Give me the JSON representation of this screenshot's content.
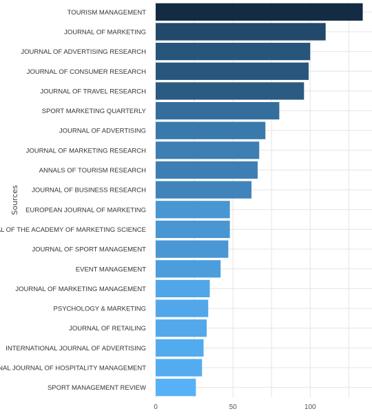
{
  "chart_data": {
    "type": "bar",
    "orientation": "horizontal",
    "title": "",
    "xlabel": "",
    "ylabel": "Sources",
    "xlim": [
      0,
      140
    ],
    "xticks": [
      0,
      50,
      100
    ],
    "grid": true,
    "categories": [
      "TOURISM MANAGEMENT",
      "JOURNAL OF MARKETING",
      "JOURNAL OF ADVERTISING RESEARCH",
      "JOURNAL OF CONSUMER RESEARCH",
      "JOURNAL OF TRAVEL RESEARCH",
      "SPORT MARKETING QUARTERLY",
      "JOURNAL OF ADVERTISING",
      "JOURNAL OF MARKETING RESEARCH",
      "ANNALS OF TOURISM RESEARCH",
      "JOURNAL OF BUSINESS RESEARCH",
      "EUROPEAN JOURNAL OF MARKETING",
      "JOURNAL OF THE ACADEMY OF MARKETING SCIENCE",
      "JOURNAL OF SPORT MANAGEMENT",
      "EVENT MANAGEMENT",
      "JOURNAL OF MARKETING MANAGEMENT",
      "PSYCHOLOGY & MARKETING",
      "JOURNAL OF RETAILING",
      "INTERNATIONAL JOURNAL OF ADVERTISING",
      "INTERNATIONAL JOURNAL OF HOSPITALITY MANAGEMENT",
      "SPORT MANAGEMENT REVIEW"
    ],
    "values": [
      134,
      110,
      100,
      99,
      96,
      80,
      71,
      67,
      66,
      62,
      48,
      48,
      47,
      42,
      35,
      34,
      33,
      31,
      30,
      26
    ],
    "color_range": [
      "#56b1f7",
      "#132b43"
    ]
  }
}
